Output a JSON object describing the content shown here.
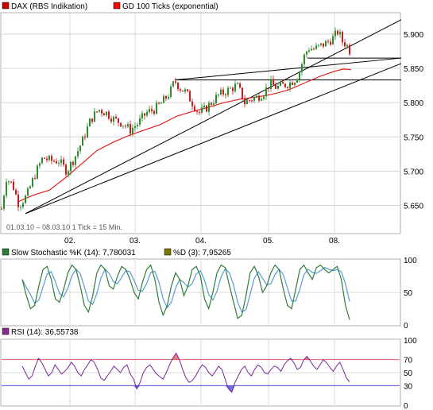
{
  "main_panel": {
    "legend": [
      {
        "label": "DAX (RBS Indikation)",
        "color": "#cc0000"
      },
      {
        "label": "GD 100 Ticks (exponential)",
        "color": "#ff0000"
      }
    ],
    "info_text": "01.03.10 – 08.03.10   1 Tick = 15 Min.",
    "x_tick_labels": [
      "02.",
      "03.",
      "04.",
      "05.",
      "08."
    ]
  },
  "stoch_panel": {
    "legend": [
      {
        "label": "Slow Stochastic %K (14): 7,780031",
        "color": "#2e7d3a"
      },
      {
        "label": "%D (3): 7,95265",
        "color": "#7a7a00"
      }
    ]
  },
  "rsi_panel": {
    "legend": [
      {
        "label": "RSI (14): 36,55738",
        "color": "#8b2a8b"
      }
    ]
  },
  "colors": {
    "up_candle": "#2e8b2e",
    "down_candle": "#cc1a1a",
    "ema": "#e02020",
    "stoch_k": "#2e7d3a",
    "stoch_d": "#5a9bd4",
    "rsi": "#7a2a9a",
    "rsi_over": "#e0606a",
    "rsi_under": "#5050e0",
    "grid": "#d8d8d8"
  },
  "chart_data": [
    {
      "type": "candlestick",
      "x_categories": [
        "02.",
        "03.",
        "04.",
        "05.",
        "08."
      ],
      "ylim": [
        5610,
        5930
      ],
      "y_ticks": [
        "5.900",
        "5.850",
        "5.800",
        "5.750",
        "5.700",
        "5.650"
      ],
      "y_tick_values": [
        5900,
        5850,
        5800,
        5750,
        5700,
        5650
      ],
      "close_path": [
        [
          0,
          5645
        ],
        [
          6,
          5690
        ],
        [
          14,
          5680
        ],
        [
          22,
          5650
        ],
        [
          32,
          5665
        ],
        [
          42,
          5695
        ],
        [
          52,
          5720
        ],
        [
          62,
          5715
        ],
        [
          72,
          5715
        ],
        [
          82,
          5700
        ],
        [
          92,
          5720
        ],
        [
          102,
          5745
        ],
        [
          112,
          5775
        ],
        [
          122,
          5790
        ],
        [
          132,
          5785
        ],
        [
          142,
          5775
        ],
        [
          152,
          5770
        ],
        [
          162,
          5760
        ],
        [
          172,
          5770
        ],
        [
          182,
          5785
        ],
        [
          192,
          5790
        ],
        [
          202,
          5800
        ],
        [
          212,
          5815
        ],
        [
          218,
          5832
        ],
        [
          224,
          5822
        ],
        [
          232,
          5815
        ],
        [
          240,
          5800
        ],
        [
          248,
          5785
        ],
        [
          256,
          5790
        ],
        [
          264,
          5800
        ],
        [
          272,
          5810
        ],
        [
          280,
          5815
        ],
        [
          288,
          5820
        ],
        [
          296,
          5825
        ],
        [
          302,
          5812
        ],
        [
          306,
          5800
        ],
        [
          314,
          5805
        ],
        [
          322,
          5808
        ],
        [
          330,
          5815
        ],
        [
          338,
          5828
        ],
        [
          346,
          5822
        ],
        [
          354,
          5825
        ],
        [
          362,
          5828
        ],
        [
          370,
          5835
        ],
        [
          376,
          5848
        ],
        [
          380,
          5865
        ],
        [
          386,
          5880
        ],
        [
          394,
          5878
        ],
        [
          402,
          5883
        ],
        [
          410,
          5888
        ],
        [
          418,
          5895
        ],
        [
          424,
          5905
        ],
        [
          428,
          5890
        ],
        [
          434,
          5885
        ],
        [
          440,
          5872
        ]
      ],
      "ema_path": [
        [
          20,
          5655
        ],
        [
          40,
          5665
        ],
        [
          60,
          5672
        ],
        [
          80,
          5690
        ],
        [
          100,
          5710
        ],
        [
          120,
          5730
        ],
        [
          140,
          5742
        ],
        [
          160,
          5752
        ],
        [
          180,
          5760
        ],
        [
          200,
          5768
        ],
        [
          220,
          5780
        ],
        [
          240,
          5787
        ],
        [
          260,
          5793
        ],
        [
          280,
          5800
        ],
        [
          300,
          5805
        ],
        [
          320,
          5808
        ],
        [
          340,
          5812
        ],
        [
          360,
          5818
        ],
        [
          380,
          5828
        ],
        [
          400,
          5838
        ],
        [
          420,
          5846
        ],
        [
          430,
          5849
        ],
        [
          440,
          5848
        ]
      ],
      "trend_lines": [
        {
          "from": [
            30,
            5638
          ],
          "to": [
            503,
            5921
          ]
        },
        {
          "from": [
            218,
            5833
          ],
          "to": [
            503,
            5865
          ]
        },
        {
          "from": [
            30,
            5638
          ],
          "to": [
            503,
            5857
          ]
        },
        {
          "from": [
            218,
            5833
          ],
          "to": [
            503,
            5833
          ]
        },
        {
          "from": [
            385,
            5865
          ],
          "to": [
            503,
            5865
          ]
        }
      ]
    },
    {
      "type": "line",
      "name": "Slow Stochastic",
      "ylim": [
        0,
        100
      ],
      "y_ticks": [
        "100",
        "50",
        "0"
      ],
      "y_tick_values": [
        100,
        50,
        0
      ],
      "k_values": [
        70,
        45,
        25,
        30,
        60,
        85,
        90,
        70,
        40,
        35,
        55,
        80,
        92,
        85,
        60,
        30,
        20,
        45,
        80,
        92,
        85,
        60,
        55,
        75,
        90,
        85,
        70,
        50,
        40,
        65,
        85,
        92,
        70,
        35,
        15,
        30,
        60,
        80,
        70,
        45,
        60,
        85,
        90,
        75,
        40,
        25,
        50,
        80,
        92,
        88,
        60,
        35,
        10,
        15,
        45,
        80,
        90,
        75,
        50,
        60,
        80,
        92,
        85,
        55,
        30,
        25,
        55,
        85,
        92,
        80,
        70,
        88,
        92,
        85,
        80,
        85,
        90,
        70,
        30,
        8
      ]
    },
    {
      "type": "line",
      "name": "RSI",
      "ylim": [
        0,
        100
      ],
      "y_ticks": [
        "100",
        "70",
        "50",
        "30",
        "0"
      ],
      "y_tick_values": [
        100,
        70,
        50,
        30,
        0
      ],
      "values": [
        60,
        50,
        40,
        45,
        60,
        72,
        65,
        55,
        45,
        50,
        62,
        55,
        48,
        52,
        58,
        66,
        60,
        50,
        45,
        55,
        62,
        70,
        66,
        55,
        42,
        38,
        45,
        52,
        60,
        55,
        50,
        58,
        62,
        48,
        40,
        25,
        35,
        50,
        58,
        62,
        55,
        48,
        44,
        40,
        50,
        62,
        72,
        80,
        70,
        55,
        42,
        35,
        38,
        45,
        55,
        62,
        58,
        50,
        45,
        52,
        60,
        55,
        40,
        25,
        20,
        35,
        45,
        55,
        60,
        50,
        45,
        55,
        62,
        58,
        50,
        48,
        55,
        60,
        58,
        52,
        62,
        68,
        72,
        65,
        55,
        58,
        70,
        75,
        68,
        60,
        55,
        62,
        70,
        65,
        58,
        52,
        60,
        66,
        55,
        42,
        36
      ]
    }
  ]
}
